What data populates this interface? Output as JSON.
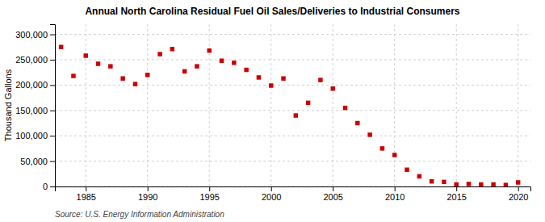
{
  "chart_data": {
    "type": "scatter",
    "title": "Annual North Carolina Residual Fuel Oil Sales/Deliveries to Industrial Consumers",
    "ylabel": "Thousand Gallons",
    "annotations": [
      "Source: U.S. Energy Information Administration"
    ],
    "x": [
      1983,
      1984,
      1985,
      1986,
      1987,
      1988,
      1989,
      1990,
      1991,
      1992,
      1993,
      1994,
      1995,
      1996,
      1997,
      1998,
      1999,
      2000,
      2001,
      2002,
      2003,
      2004,
      2005,
      2006,
      2007,
      2008,
      2009,
      2010,
      2011,
      2012,
      2013,
      2014,
      2015,
      2016,
      2017,
      2018,
      2019,
      2020
    ],
    "values": [
      275000,
      218000,
      258000,
      242000,
      237000,
      213000,
      202000,
      220000,
      261000,
      271000,
      227000,
      237000,
      268000,
      248000,
      244000,
      230000,
      215000,
      199000,
      213000,
      140000,
      165000,
      210000,
      193000,
      155000,
      125000,
      102000,
      75000,
      62000,
      33000,
      20000,
      10000,
      9000,
      4000,
      5000,
      4000,
      4000,
      3000,
      8000
    ],
    "color": "#cc0000",
    "marker": "square",
    "xlim": [
      1982.5,
      2021
    ],
    "ylim": [
      0,
      320000
    ],
    "xticks": [
      1985,
      1990,
      1995,
      2000,
      2005,
      2010,
      2015,
      2020
    ],
    "yticks": [
      0,
      {
        "value": 50000,
        "label": "50,000"
      },
      {
        "value": 100000,
        "label": "100,000"
      },
      {
        "value": 150000,
        "label": "150,000"
      },
      {
        "value": 200000,
        "label": "200,000"
      },
      {
        "value": 250000,
        "label": "250,000"
      },
      {
        "value": 300000,
        "label": "300,000"
      }
    ],
    "grid": true
  }
}
